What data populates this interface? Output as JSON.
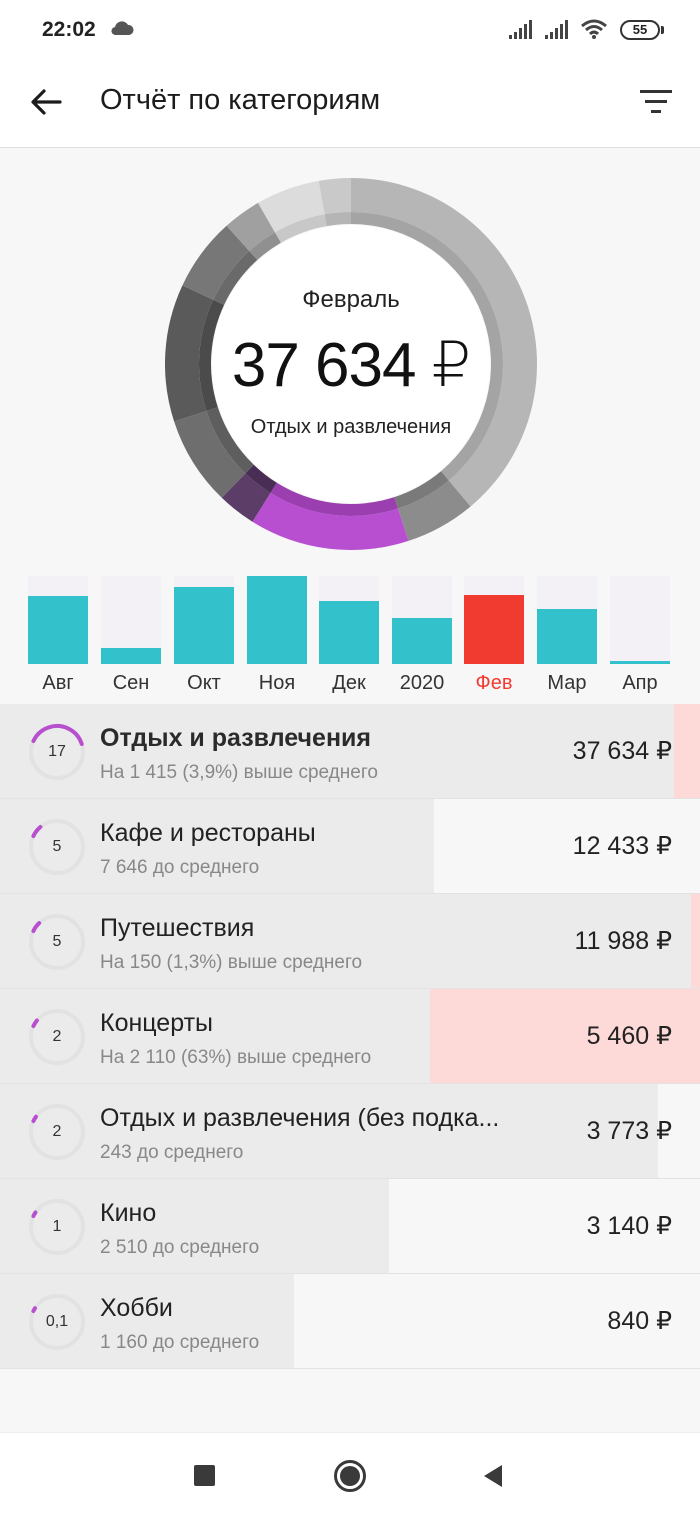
{
  "status_bar": {
    "time": "22:02",
    "battery": "55",
    "icons": [
      "cloud-icon",
      "signal-icon",
      "signal-icon",
      "wifi-icon",
      "battery-icon"
    ]
  },
  "app_bar": {
    "title": "Отчёт по категориям",
    "back_icon": "arrow-left-icon",
    "filter_icon": "filter-icon"
  },
  "summary": {
    "month": "Февраль",
    "amount": "37 634 ₽",
    "category": "Отдых и развлечения"
  },
  "colors": {
    "accent_purple": "#b74fcf",
    "bar_teal": "#33c2cc",
    "bar_active": "#f23b30",
    "over_average_bg": "#fdd9d8"
  },
  "chart_data": {
    "type": "bar",
    "categories": [
      "Авг",
      "Сен",
      "Окт",
      "Ноя",
      "Дек",
      "2020",
      "Фев",
      "Мар",
      "Апр"
    ],
    "values": [
      0.77,
      0.18,
      0.87,
      1.0,
      0.72,
      0.52,
      0.78,
      0.62,
      0.03
    ],
    "highlighted": "Фев"
  },
  "categories": [
    {
      "count": "17",
      "ring_fraction": 0.38,
      "name": "Отдых и развлечения",
      "note": "На 1 415 (3,9%) выше среднего",
      "amount": "37 634 ₽",
      "share_fraction": 0.963,
      "over_fraction": 0.037,
      "bold": true
    },
    {
      "count": "5",
      "ring_fraction": 0.07,
      "name": "Кафе и рестораны",
      "note": "7 646 до среднего",
      "amount": "12 433 ₽",
      "share_fraction": 0.62,
      "over_fraction": 0
    },
    {
      "count": "5",
      "ring_fraction": 0.06,
      "name": "Путешествия",
      "note": "На 150 (1,3%) выше среднего",
      "amount": "11 988 ₽",
      "share_fraction": 0.987,
      "over_fraction": 0.013
    },
    {
      "count": "2",
      "ring_fraction": 0.04,
      "name": "Концерты",
      "note": "На 2 110 (63%) выше среднего",
      "amount": "5 460 ₽",
      "share_fraction": 0.614,
      "over_fraction": 0.386
    },
    {
      "count": "2",
      "ring_fraction": 0.03,
      "name": "Отдых и развлечения (без подка...",
      "note": "243 до среднего",
      "amount": "3 773 ₽",
      "share_fraction": 0.94,
      "over_fraction": 0
    },
    {
      "count": "1",
      "ring_fraction": 0.025,
      "name": "Кино",
      "note": "2 510 до среднего",
      "amount": "3 140 ₽",
      "share_fraction": 0.556,
      "over_fraction": 0
    },
    {
      "count": "0,1",
      "ring_fraction": 0.02,
      "name": "Хобби",
      "note": "1 160 до среднего",
      "amount": "840 ₽",
      "share_fraction": 0.42,
      "over_fraction": 0
    }
  ],
  "nav_bar": {
    "icons": [
      "recents-square-icon",
      "home-circle-icon",
      "back-triangle-icon"
    ]
  }
}
